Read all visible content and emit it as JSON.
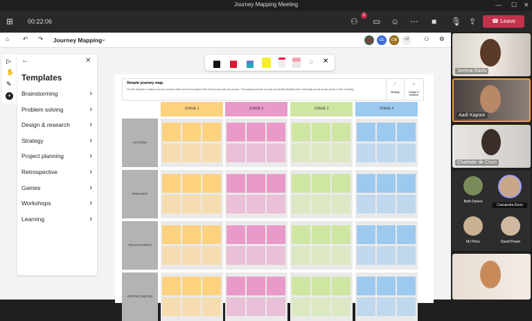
{
  "window": {
    "title": "Journey Mapping Meeting"
  },
  "meeting": {
    "timer": "00:22:06",
    "participants_badge": "2",
    "leave_label": "Leave",
    "accent": "#c4314b"
  },
  "whiteboard": {
    "title": "Journey Mapping",
    "avatars": [
      "CE",
      "CW"
    ],
    "more_count": "+2"
  },
  "templates": {
    "title": "Templates",
    "items": [
      "Brainstorming",
      "Problem solving",
      "Design & research",
      "Strategy",
      "Project planning",
      "Retrospective",
      "Games",
      "Workshops",
      "Learning"
    ]
  },
  "board": {
    "title": "Simple journey map",
    "description": "Use this template to analyze how your customer feels and acts throughout their entire journey with your product. This mapping exercise can help you identify delightful worth celebrating as well as pain points in need of solving.",
    "side_links": [
      "Strategy",
      "Design & research"
    ],
    "stages": [
      {
        "label": "STAGE 1",
        "color": "#fdd27e"
      },
      {
        "label": "STAGE 2",
        "color": "#e99ac8"
      },
      {
        "label": "STAGE 3",
        "color": "#cfe6a3"
      },
      {
        "label": "STAGE 4",
        "color": "#9cc9ef"
      }
    ],
    "rows": [
      "ACTIONS",
      "FEELINGS",
      "TOUCH POINTS",
      "OPPORTUNITIES"
    ]
  },
  "participants": {
    "videos": [
      "Serena Davis",
      "Aadi Kapoor",
      "Charlotte de Crum"
    ],
    "grid": [
      "Beth Davies",
      "Cassandra Dunn",
      "MJ Price",
      "David Power"
    ]
  }
}
